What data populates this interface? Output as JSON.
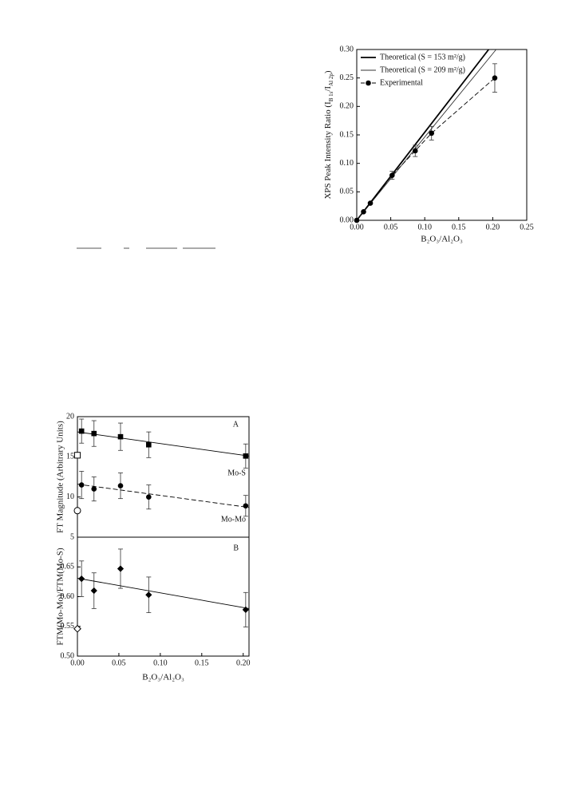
{
  "chart_data": [
    {
      "type": "line",
      "ylabel": [
        "XPS Peak Intensity Ratio (I",
        "B 1s",
        "/I",
        "Al 2p",
        ")"
      ],
      "xlabel": "B₂O₃/Al₂O₃",
      "xlim": [
        0,
        0.25
      ],
      "xticks": [
        {
          "value": 0,
          "label": "0.00"
        },
        {
          "value": 0.05,
          "label": "0.05"
        },
        {
          "value": 0.1,
          "label": "0.10"
        },
        {
          "value": 0.15,
          "label": "0.15"
        },
        {
          "value": 0.2,
          "label": "0.20"
        },
        {
          "value": 0.25,
          "label": "0.25"
        }
      ],
      "ylim": [
        0,
        0.3
      ],
      "yticks": [
        {
          "value": 0,
          "label": "0.00"
        },
        {
          "value": 0.05,
          "label": "0.05"
        },
        {
          "value": 0.1,
          "label": "0.10"
        },
        {
          "value": 0.15,
          "label": "0.15"
        },
        {
          "value": 0.2,
          "label": "0.20"
        },
        {
          "value": 0.25,
          "label": "0.25"
        },
        {
          "value": 0.3,
          "label": "0.30"
        }
      ],
      "legend": "upper left",
      "series": [
        {
          "name": "Theoretical (S = 153 m²/g)",
          "color": "#000000",
          "line": "solid",
          "weight": "bold",
          "marker": "none",
          "x": [
            0,
            0.194
          ],
          "values": [
            0,
            0.3
          ]
        },
        {
          "name": "Theoretical (S = 209 m²/g)",
          "color": "#333333",
          "line": "solid",
          "weight": "normal",
          "marker": "none",
          "x": [
            0,
            0.205
          ],
          "values": [
            0,
            0.3
          ]
        },
        {
          "name": "Experimental",
          "color": "#000000",
          "line": "dashed",
          "weight": "normal",
          "marker": "circle",
          "filled": true,
          "x": [
            0,
            0.01,
            0.02,
            0.052,
            0.086,
            0.11,
            0.203
          ],
          "values": [
            0,
            0.015,
            0.03,
            0.079,
            0.122,
            0.153,
            0.25
          ],
          "errors": [
            0,
            0,
            0,
            0.007,
            0.01,
            0.012,
            0.025
          ]
        }
      ]
    },
    {
      "type": "line",
      "ylabel": "FT Magnitude (Arbitrary Units)",
      "xlim": [
        0,
        0.207
      ],
      "ylim": [
        5,
        20
      ],
      "yticks": [
        5,
        10,
        15,
        20
      ],
      "annotations": [
        "A",
        "Mo-S",
        "Mo-Mo"
      ],
      "series": [
        {
          "color": "#000000",
          "line": "none",
          "marker": "square",
          "filled": true,
          "x": [
            0.005,
            0.02,
            0.052,
            0.086,
            0.203
          ],
          "values": [
            18.2,
            17.9,
            17.5,
            16.5,
            15.1
          ],
          "errors": [
            1.5,
            1.6,
            1.7,
            1.6,
            1.5
          ]
        },
        {
          "color": "#000000",
          "line": "solid",
          "weight": "normal",
          "marker": "none",
          "x": [
            0,
            0.207
          ],
          "values": [
            18.1,
            15.1
          ]
        },
        {
          "color": "#000000",
          "line": "none",
          "marker": "square",
          "filled": false,
          "x": [
            0
          ],
          "values": [
            15.2
          ]
        },
        {
          "color": "#000000",
          "line": "none",
          "marker": "circle",
          "filled": true,
          "x": [
            0.005,
            0.02,
            0.052,
            0.086,
            0.203
          ],
          "values": [
            11.5,
            11.0,
            11.4,
            10.0,
            8.9
          ],
          "errors": [
            1.7,
            1.5,
            1.6,
            1.5,
            1.3
          ]
        },
        {
          "color": "#000000",
          "line": "dashed",
          "weight": "normal",
          "marker": "none",
          "x": [
            0,
            0.207
          ],
          "values": [
            11.6,
            8.7
          ]
        },
        {
          "color": "#000000",
          "line": "none",
          "marker": "circle",
          "filled": false,
          "x": [
            0
          ],
          "values": [
            8.3
          ]
        }
      ]
    },
    {
      "type": "line",
      "ylabel": "FTM(Mo-Mo)/FTM(Mo-S)",
      "xlabel": "B₂O₃/Al₂O₃",
      "xlim": [
        0,
        0.207
      ],
      "xticks": [
        {
          "value": 0,
          "label": "0.00"
        },
        {
          "value": 0.05,
          "label": "0.05"
        },
        {
          "value": 0.1,
          "label": "0.10"
        },
        {
          "value": 0.15,
          "label": "0.15"
        },
        {
          "value": 0.2,
          "label": "0.20"
        }
      ],
      "ylim": [
        0.5,
        0.7
      ],
      "yticks": [
        {
          "value": 0.5,
          "label": "0.50"
        },
        {
          "value": 0.55,
          "label": "0.55"
        },
        {
          "value": 0.6,
          "label": "0.60"
        },
        {
          "value": 0.65,
          "label": "0.65"
        }
      ],
      "annotations": [
        "B"
      ],
      "series": [
        {
          "color": "#000000",
          "line": "none",
          "marker": "diamond",
          "filled": true,
          "x": [
            0.005,
            0.02,
            0.052,
            0.086,
            0.203
          ],
          "values": [
            0.63,
            0.61,
            0.647,
            0.603,
            0.578
          ],
          "errors": [
            0.03,
            0.03,
            0.033,
            0.03,
            0.029
          ]
        },
        {
          "color": "#000000",
          "line": "solid",
          "weight": "normal",
          "marker": "none",
          "x": [
            0,
            0.207
          ],
          "values": [
            0.631,
            0.58
          ]
        },
        {
          "color": "#000000",
          "line": "none",
          "marker": "diamond",
          "filled": false,
          "x": [
            0
          ],
          "values": [
            0.546
          ]
        }
      ]
    }
  ]
}
